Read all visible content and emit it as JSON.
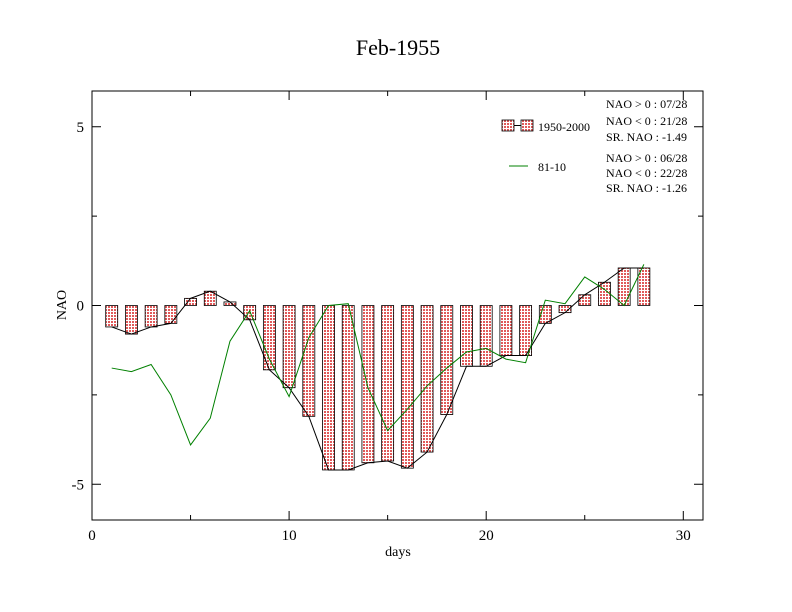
{
  "chart_data": {
    "type": "bar",
    "title": "Feb-1955",
    "xlabel": "days",
    "ylabel": "NAO",
    "xlim": [
      0,
      31
    ],
    "ylim": [
      -6,
      6
    ],
    "xticks": [
      0,
      10,
      20,
      30
    ],
    "yticks": [
      -5,
      0,
      5
    ],
    "x": [
      1,
      2,
      3,
      4,
      5,
      6,
      7,
      8,
      9,
      10,
      11,
      12,
      13,
      14,
      15,
      16,
      17,
      18,
      19,
      20,
      21,
      22,
      23,
      24,
      25,
      26,
      27,
      28
    ],
    "series": [
      {
        "name": "1950-2000",
        "kind": "bar-with-line",
        "color": "#e06060",
        "values": [
          -0.6,
          -0.8,
          -0.6,
          -0.5,
          0.2,
          0.4,
          0.1,
          -0.4,
          -1.8,
          -2.3,
          -3.1,
          -4.6,
          -4.6,
          -4.4,
          -4.35,
          -4.55,
          -4.1,
          -3.05,
          -1.7,
          -1.7,
          -1.4,
          -1.4,
          -0.5,
          -0.2,
          0.3,
          0.65,
          1.05,
          1.05
        ]
      },
      {
        "name": "81-10",
        "kind": "line",
        "color": "#008000",
        "values": [
          -1.75,
          -1.85,
          -1.65,
          -2.5,
          -3.9,
          -3.15,
          -1.0,
          -0.15,
          -1.5,
          -2.55,
          -0.9,
          0.0,
          0.05,
          -2.3,
          -3.5,
          -2.9,
          -2.25,
          -1.75,
          -1.3,
          -1.2,
          -1.5,
          -1.6,
          0.15,
          0.05,
          0.8,
          0.45,
          0.0,
          1.15
        ]
      }
    ],
    "legend": {
      "placement": "top-right",
      "stats_1950": [
        "NAO > 0 : 07/28",
        "NAO < 0 : 21/28",
        "SR. NAO : -1.49"
      ],
      "stats_8110": [
        "NAO > 0 : 06/28",
        "NAO < 0 : 22/28",
        "SR. NAO : -1.26"
      ]
    },
    "grid": false
  }
}
